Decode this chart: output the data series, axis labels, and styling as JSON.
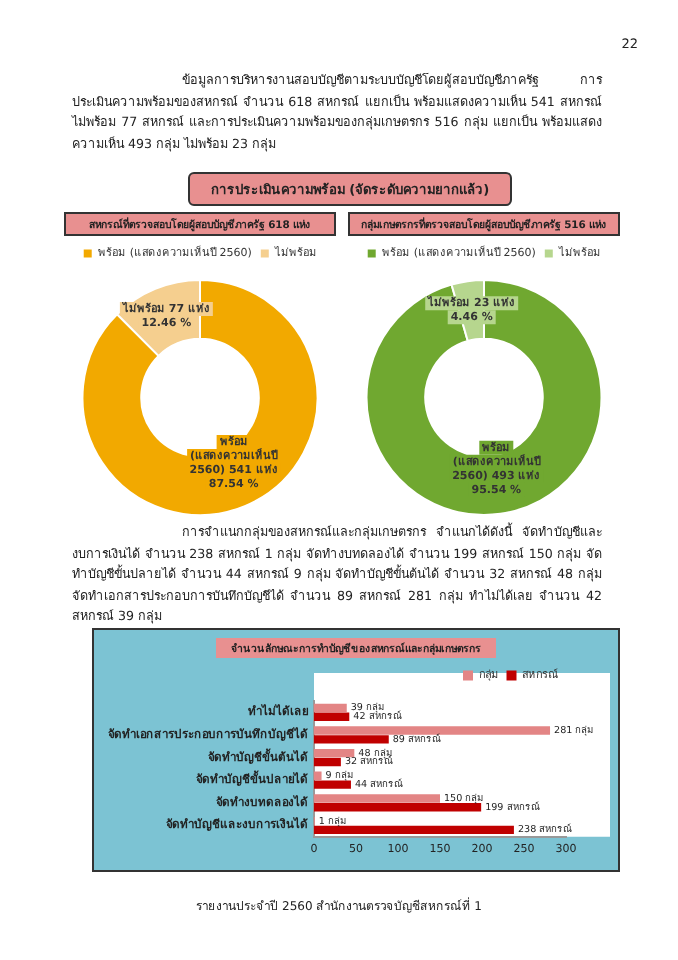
{
  "chart_data": [
    {
      "type": "donut",
      "title": "สหกรณ์ที่ตรวจสอบโดยผู้สอบบัญชีภาครัฐ 618 แห่ง",
      "annotations": [
        "22",
        "ข้อมูลการบริหารงานสอบบัญชีตามระบบบัญชีโดยผู้สอบบัญชีภาครัฐ การประเมินความพร้อมของสหกรณ์ จำนวน 618 สหกรณ์ แยกเป็น พร้อมแสดงความเห็น 541 สหกรณ์ ไม่พร้อม 77 สหกรณ์ และการประเมินความพร้อมของกลุ่มเกษตรกร 516 กลุ่ม แยกเป็น พร้อมแสดงความเห็น 493 กลุ่ม ไม่พร้อม 23 กลุ่ม",
        "การประเมินความพร้อม (จัดระดับความยากแล้ว)"
      ],
      "categories": [
        "พร้อม (แสดงความเห็นปี 2560)",
        "ไม่พร้อม"
      ],
      "values": [
        541,
        77
      ],
      "value_labels": [
        "541 แห่ง 87.54 %",
        "77 แห่ง 12.46 %"
      ],
      "colors": [
        "#f2a900",
        "#f5cf8f"
      ],
      "legend": "top"
    },
    {
      "type": "donut",
      "title": "กลุ่มเกษตรกรที่ตรวจสอบโดยผู้สอบบัญชีภาครัฐ 516 แห่ง",
      "categories": [
        "พร้อม (แสดงความเห็นปี 2560)",
        "ไม่พร้อม"
      ],
      "values": [
        493,
        23
      ],
      "value_labels": [
        "493 แห่ง 95.54 %",
        "23 แห่ง 4.46 %"
      ],
      "colors": [
        "#70a830",
        "#b6d68e"
      ],
      "legend": "top"
    },
    {
      "type": "bar",
      "orientation": "horizontal",
      "title": "จำนวนลักษณะการทำบัญชีของสหกรณ์และกลุ่มเกษตรกร",
      "annotations": [
        "การจำแนกกลุ่มของสหกรณ์และกลุ่มเกษตรกร จำแนกได้ดังนี้ จัดทำบัญชีและงบการเงินได้ จำนวน 238 สหกรณ์ 1 กลุ่ม จัดทำงบทดลองได้ จำนวน 199 สหกรณ์ 150 กลุ่ม จัดทำบัญชีขั้นปลายได้ จำนวน 44 สหกรณ์ 9 กลุ่ม จัดทำบัญชีขั้นต้นได้ จำนวน 32 สหกรณ์ 48 กลุ่ม จัดทำเอกสารประกอบการบันทึกบัญชีได้ จำนวน 89 สหกรณ์ 281 กลุ่ม ทำไม่ได้เลย จำนวน 42 สหกรณ์ 39 กลุ่ม",
        "รายงานประจำปี 2560 สำนักงานตรวจบัญชีสหกรณ์ที่ 1"
      ],
      "categories": [
        "ทำไม่ได้เลย",
        "จัดทำเอกสารประกอบการบันทึกบัญชีได้",
        "จัดทำบัญชีขั้นต้นได้",
        "จัดทำบัญชีขั้นปลายได้",
        "จัดทำงบทดลองได้",
        "จัดทำบัญชีและงบการเงินได้"
      ],
      "series": [
        {
          "name": "กลุ่ม",
          "color": "#e38585",
          "values": [
            39,
            281,
            48,
            9,
            150,
            1
          ],
          "value_labels": [
            "39 กลุ่ม",
            "281 กลุ่ม",
            "48 กลุ่ม",
            "9 กลุ่ม",
            "150 กลุ่ม",
            "1 กลุ่ม"
          ]
        },
        {
          "name": "สหกรณ์",
          "color": "#c00000",
          "values": [
            42,
            89,
            32,
            44,
            199,
            238
          ],
          "value_labels": [
            "42 สหกรณ์",
            "89 สหกรณ์",
            "32 สหกรณ์",
            "44 สหกรณ์",
            "199 สหกรณ์",
            "238 สหกรณ์"
          ]
        }
      ],
      "xlim": [
        0,
        300
      ],
      "xticks": [
        0,
        50,
        100,
        150,
        200,
        250,
        300
      ],
      "grid": false,
      "legend": "top right"
    }
  ]
}
